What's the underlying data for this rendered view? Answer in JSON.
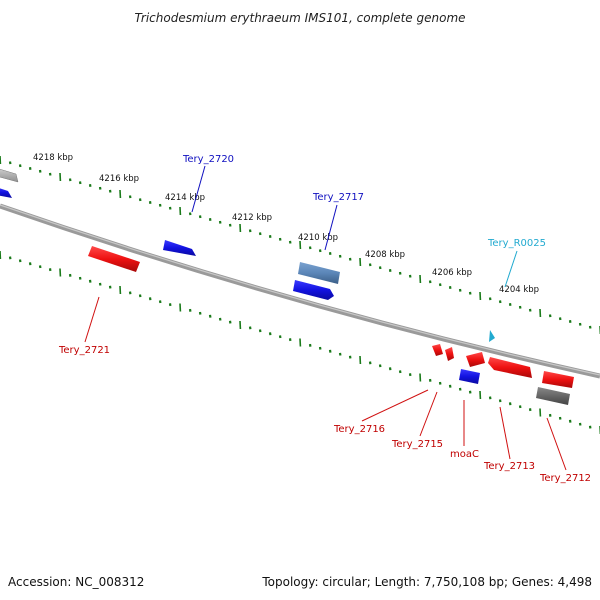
{
  "title": "Trichodesmium erythraeum IMS101, complete genome",
  "footer": {
    "accession": "Accession: NC_008312",
    "summary": "Topology: circular; Length: 7,750,108 bp; Genes: 4,498"
  },
  "colors": {
    "forward": "#1010e0",
    "reverse": "#ee1111",
    "steelblue": "#5b86b8",
    "gray": "#b0b0b0",
    "darkgray": "#666666",
    "rna": "#22aad0",
    "ticks": "#1a7a1a",
    "backbone": "#808080"
  },
  "scale": {
    "labels": [
      "4218 kbp",
      "4216 kbp",
      "4214 kbp",
      "4212 kbp",
      "4210 kbp",
      "4208 kbp",
      "4206 kbp",
      "4204 kbp"
    ]
  },
  "genes": [
    {
      "name": "Tery_2720",
      "color": "forward"
    },
    {
      "name": "Tery_2717",
      "color": "forward"
    },
    {
      "name": "Tery_R0025",
      "color": "rna"
    },
    {
      "name": "Tery_2721",
      "color": "reverse"
    },
    {
      "name": "Tery_2716",
      "color": "reverse"
    },
    {
      "name": "Tery_2715",
      "color": "reverse"
    },
    {
      "name": "moaC",
      "color": "reverse"
    },
    {
      "name": "Tery_2713",
      "color": "reverse"
    },
    {
      "name": "Tery_2712",
      "color": "reverse"
    }
  ]
}
